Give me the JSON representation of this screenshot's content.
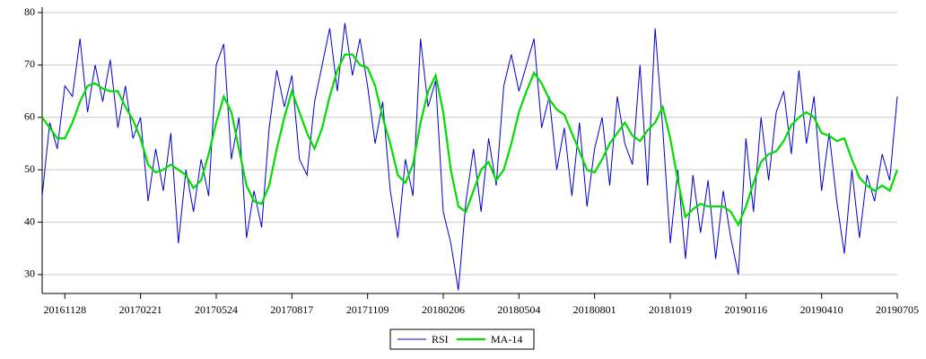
{
  "chart_data": {
    "type": "line",
    "categories": [
      null,
      null,
      null,
      "20161128",
      null,
      null,
      null,
      null,
      null,
      null,
      null,
      null,
      null,
      "20170221",
      null,
      null,
      null,
      null,
      null,
      null,
      null,
      null,
      null,
      "20170524",
      null,
      null,
      null,
      null,
      null,
      null,
      null,
      null,
      null,
      "20170817",
      null,
      null,
      null,
      null,
      null,
      null,
      null,
      null,
      null,
      "20171109",
      null,
      null,
      null,
      null,
      null,
      null,
      null,
      null,
      null,
      "20180206",
      null,
      null,
      null,
      null,
      null,
      null,
      null,
      null,
      null,
      "20180504",
      null,
      null,
      null,
      null,
      null,
      null,
      null,
      null,
      null,
      "20180801",
      null,
      null,
      null,
      null,
      null,
      null,
      null,
      null,
      null,
      "20181019",
      null,
      null,
      null,
      null,
      null,
      null,
      null,
      null,
      null,
      "20190116",
      null,
      null,
      null,
      null,
      null,
      null,
      null,
      null,
      null,
      "20190410",
      null,
      null,
      null,
      null,
      null,
      null,
      null,
      null,
      null,
      "20190705"
    ],
    "series": [
      {
        "name": "RSI",
        "color": "#0000cc",
        "values": [
          45,
          59,
          54,
          66,
          64,
          75,
          61,
          70,
          63,
          71,
          58,
          66,
          56,
          60,
          44,
          54,
          46,
          57,
          36,
          50,
          42,
          52,
          45,
          70,
          74,
          52,
          60,
          37,
          46,
          39,
          58,
          69,
          62,
          68,
          52,
          49,
          63,
          70,
          77,
          65,
          78,
          68,
          75,
          66,
          55,
          63,
          46,
          37,
          52,
          45,
          75,
          62,
          67,
          42,
          36,
          27,
          44,
          54,
          42,
          56,
          47,
          66,
          72,
          65,
          70,
          75,
          58,
          64,
          50,
          58,
          45,
          59,
          43,
          54,
          60,
          47,
          64,
          55,
          51,
          70,
          47,
          77,
          58,
          36,
          50,
          33,
          49,
          38,
          48,
          33,
          46,
          37,
          30,
          56,
          42,
          60,
          48,
          61,
          65,
          53,
          69,
          55,
          64,
          46,
          57,
          44,
          34,
          50,
          37,
          49,
          44,
          53,
          48,
          64
        ]
      },
      {
        "name": "MA-14",
        "color": "#00dd00",
        "values": [
          60,
          58,
          56,
          56,
          59,
          63,
          66,
          66.5,
          65.5,
          65,
          65,
          62,
          59.5,
          56,
          51,
          49.5,
          50,
          51,
          50,
          49,
          46.5,
          48,
          53,
          59,
          64,
          61,
          54,
          47,
          44,
          43.5,
          47,
          54,
          60,
          65,
          61,
          57,
          54,
          58,
          64,
          69,
          72,
          72,
          70,
          69.5,
          66,
          60,
          55,
          49,
          47.5,
          51,
          59,
          65,
          68,
          61,
          50,
          43,
          42,
          46,
          50,
          51.5,
          48,
          50,
          55,
          61,
          65,
          68.5,
          66.5,
          63.5,
          61.5,
          60.5,
          57,
          53.5,
          50,
          49.5,
          52,
          55,
          57,
          59,
          56.5,
          55.5,
          57.5,
          59,
          62,
          56,
          48,
          41,
          42.5,
          43.5,
          43,
          43,
          43,
          42,
          39.5,
          43,
          47.5,
          51.5,
          53,
          53.5,
          55.5,
          58.5,
          60,
          61,
          60,
          57,
          56.5,
          55.5,
          56,
          52,
          48.5,
          47,
          46,
          47,
          46,
          50
        ]
      }
    ],
    "ylim": [
      26.4,
      80
    ],
    "yticks": [
      30,
      40,
      50,
      60,
      70,
      80
    ],
    "grid": true,
    "legend": "bottom"
  }
}
